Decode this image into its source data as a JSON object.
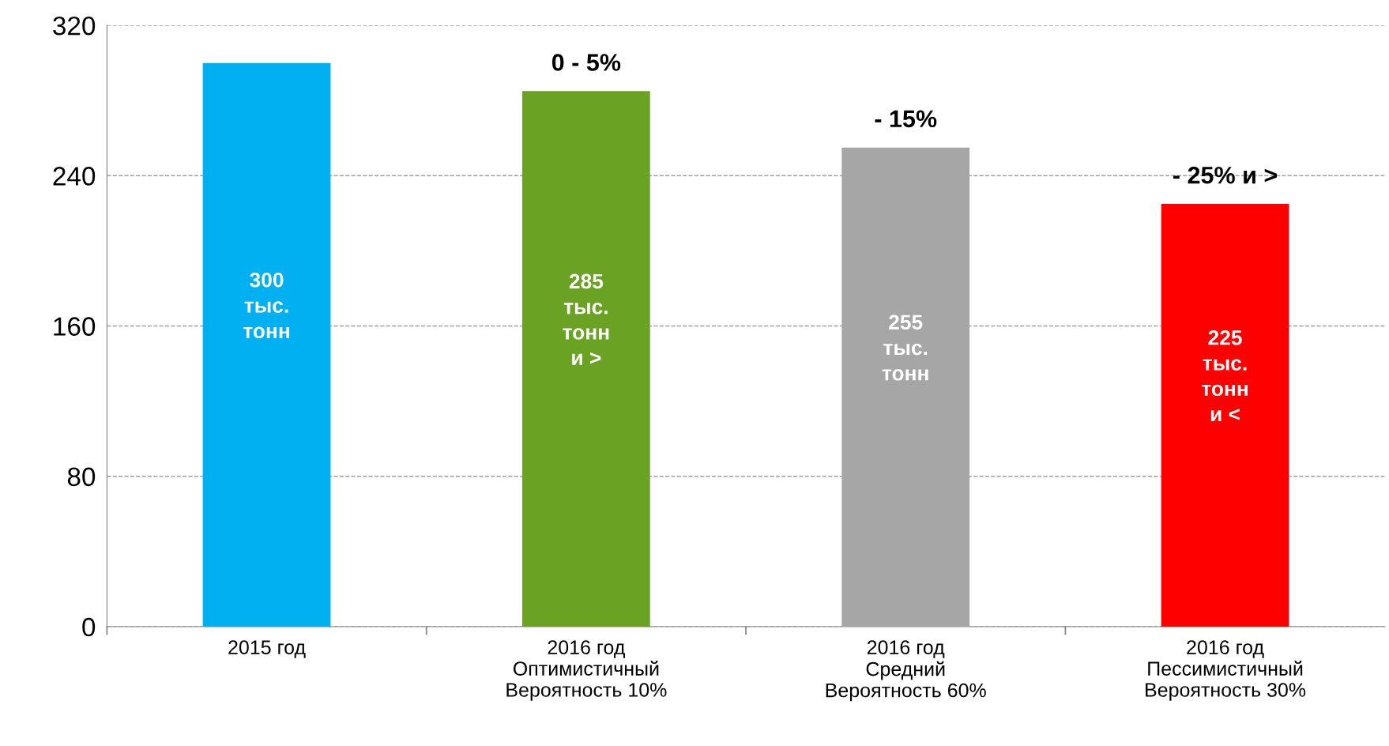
{
  "chart_data": {
    "type": "bar",
    "categories": [
      "2015 год",
      "2016 год\nОптимистичный\nВероятность 10%",
      "2016 год\nСредний\nВероятность 60%",
      "2016 год\nПессимистичный\nВероятность 30%"
    ],
    "values": [
      300,
      285,
      255,
      225
    ],
    "colors": [
      "#00b0f0",
      "#6aa324",
      "#a6a6a6",
      "#ff0000"
    ],
    "value_labels": [
      "300\nтыс.\nтонн",
      "285\nтыс.\nтонн\nи >",
      "255\nтыс.\nтонн",
      "225\nтыс.\nтонн\nи <"
    ],
    "annotations": [
      {
        "text": "0 - 5%",
        "x": "2016 год\nОптимистичный\nВероятность 10%",
        "y": 285
      },
      {
        "text": "- 15%",
        "x": "2016 год\nСредний\nВероятность 60%",
        "y": 255
      },
      {
        "text": "- 25% и >",
        "x": "2016 год\nПессимистичный\nВероятность 30%",
        "y": 225
      }
    ],
    "ylim": [
      0,
      320
    ],
    "yticks": [
      0,
      80,
      160,
      240,
      320
    ],
    "grid": "y",
    "line_style": "dashed"
  }
}
